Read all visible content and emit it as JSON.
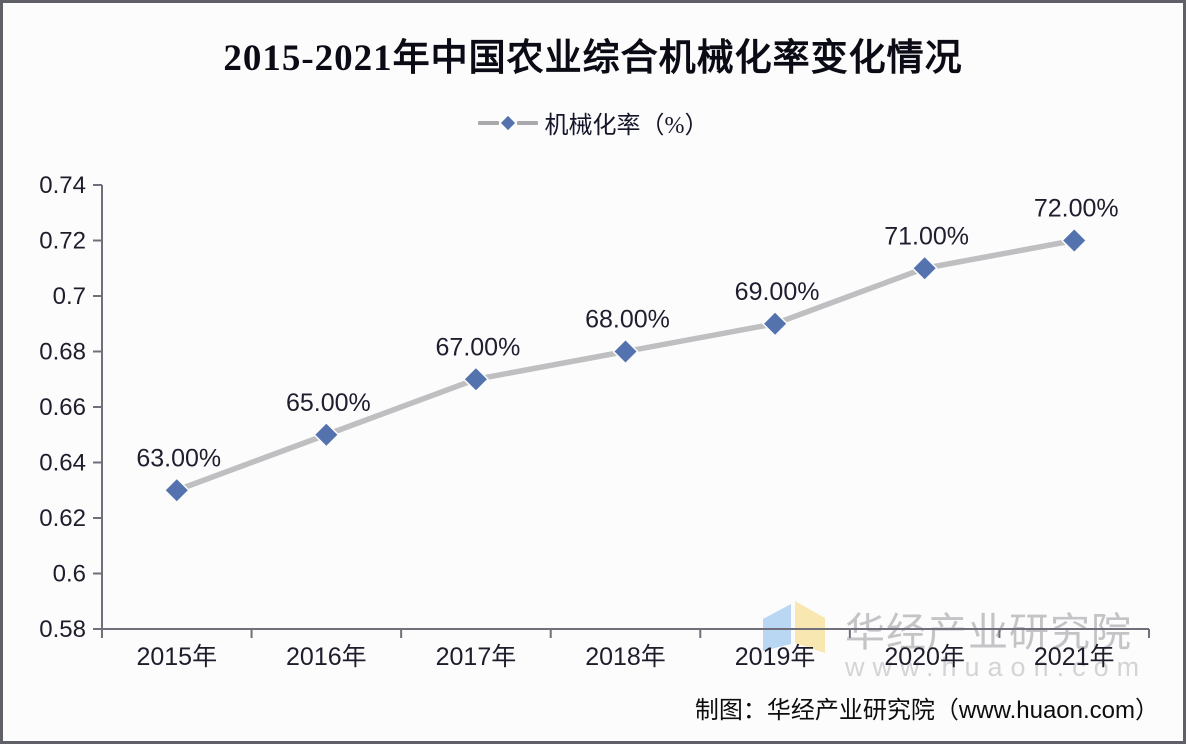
{
  "chart": {
    "title": "2015-2021年中国农业综合机械化率变化情况",
    "legend_label": "机械化率（%）"
  },
  "chart_data": {
    "type": "line",
    "title": "2015-2021年中国农业综合机械化率变化情况",
    "categories": [
      "2015年",
      "2016年",
      "2017年",
      "2018年",
      "2019年",
      "2020年",
      "2021年"
    ],
    "series": [
      {
        "name": "机械化率（%）",
        "values": [
          0.63,
          0.65,
          0.67,
          0.68,
          0.69,
          0.71,
          0.72
        ],
        "point_labels": [
          "63.00%",
          "65.00%",
          "67.00%",
          "68.00%",
          "69.00%",
          "71.00%",
          "72.00%"
        ]
      }
    ],
    "xlabel": "",
    "ylabel": "",
    "ylim": [
      0.58,
      0.74
    ],
    "ytick_labels": [
      "0.58",
      "0.6",
      "0.62",
      "0.64",
      "0.66",
      "0.68",
      "0.7",
      "0.72",
      "0.74"
    ],
    "grid": false,
    "legend_position": "top-center",
    "marker_shape": "diamond",
    "colors": {
      "line": "#bfbfc1",
      "marker_fill": "#5472ae",
      "marker_edge": "#48649e",
      "axis": "#70707a",
      "tick_label_text": "#1d1d2b",
      "point_label_text": "#1e1e2e"
    }
  },
  "watermark": {
    "name": "华经产业研究院",
    "url": "www.huaon.com",
    "logo_colors": {
      "left_panel": "#b9d6f2",
      "right_panel": "#f8e7b0"
    }
  },
  "footer": {
    "credit": "制图：华经产业研究院（www.huaon.com）"
  }
}
